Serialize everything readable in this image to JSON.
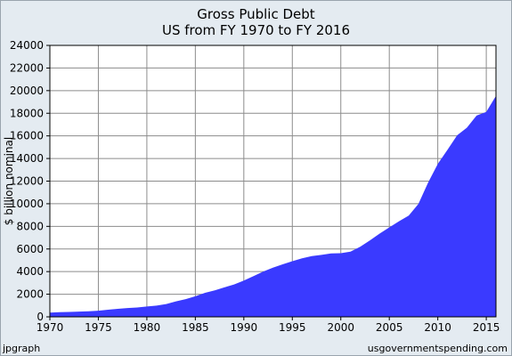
{
  "header": {
    "title_line1": "Gross Public Debt",
    "title_line2": "US from FY 1970 to FY 2016"
  },
  "footer": {
    "left": "jpgraph",
    "right": "usgovernmentspending.com"
  },
  "colors": {
    "frame_bg": "#e4ebf1",
    "plot_bg": "#ffffff",
    "grid": "#8c8c8c",
    "area_fill": "#3a3aff"
  },
  "chart_data": {
    "type": "area",
    "title": "Gross Public Debt",
    "subtitle": "US from FY 1970 to FY 2016",
    "xlabel": "",
    "ylabel": "$ billion nominal",
    "xlim": [
      1970,
      2016
    ],
    "ylim": [
      0,
      24000
    ],
    "x_ticks": [
      1970,
      1975,
      1980,
      1985,
      1990,
      1995,
      2000,
      2005,
      2010,
      2015
    ],
    "x_tick_labels": [
      "1970",
      "1975",
      "1980",
      "1985",
      "1990",
      "1995",
      "2000",
      "2005",
      "2010",
      "2015"
    ],
    "y_ticks": [
      0,
      2000,
      4000,
      6000,
      8000,
      10000,
      12000,
      14000,
      16000,
      18000,
      20000,
      22000,
      24000
    ],
    "y_tick_labels": [
      "0",
      "2000",
      "4000",
      "6000",
      "8000",
      "10000",
      "12000",
      "14000",
      "16000",
      "18000",
      "20000",
      "22000",
      "24000"
    ],
    "grid": true,
    "series": [
      {
        "x": [
          1970,
          1971,
          1972,
          1973,
          1974,
          1975,
          1976,
          1977,
          1978,
          1979,
          1980,
          1981,
          1982,
          1983,
          1984,
          1985,
          1986,
          1987,
          1988,
          1989,
          1990,
          1991,
          1992,
          1993,
          1994,
          1995,
          1996,
          1997,
          1998,
          1999,
          2000,
          2001,
          2002,
          2003,
          2004,
          2005,
          2006,
          2007,
          2008,
          2009,
          2010,
          2011,
          2012,
          2013,
          2014,
          2015,
          2016
        ],
        "values": [
          380,
          408,
          436,
          466,
          484,
          542,
          629,
          706,
          777,
          829,
          909,
          995,
          1137,
          1372,
          1565,
          1817,
          2121,
          2346,
          2601,
          2868,
          3206,
          3598,
          4002,
          4351,
          4643,
          4921,
          5181,
          5369,
          5478,
          5606,
          5629,
          5770,
          6198,
          6760,
          7355,
          7905,
          8451,
          8951,
          9986,
          11876,
          13529,
          14764,
          16051,
          16719,
          17794,
          18120,
          19540
        ]
      }
    ]
  }
}
